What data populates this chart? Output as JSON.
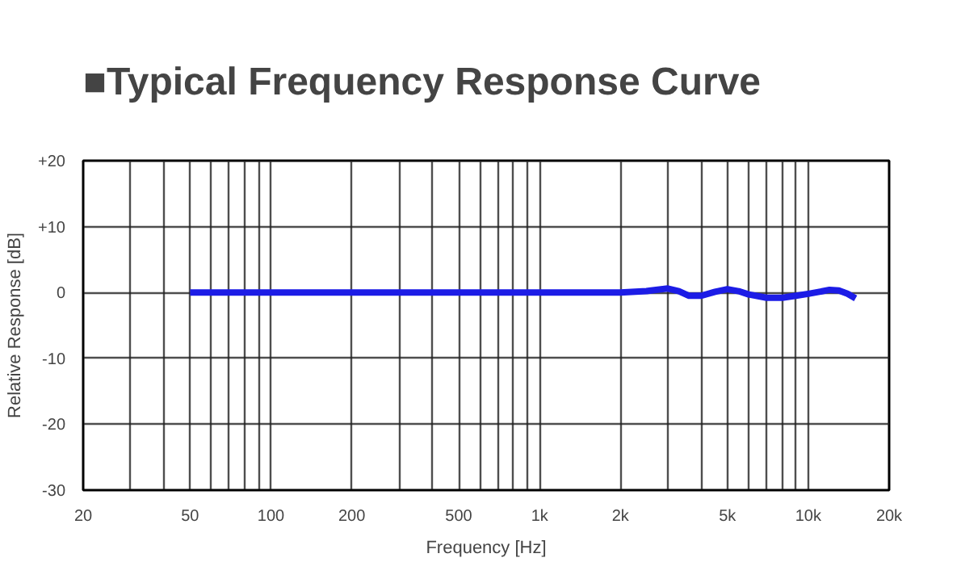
{
  "chart_data": {
    "type": "line",
    "title": "■Typical Frequency Response Curve",
    "xlabel": "Frequency [Hz]",
    "ylabel": "Relative Response [dB]",
    "log": "x",
    "grid": true,
    "xlim": [
      20,
      20000
    ],
    "ylim": [
      -30,
      20
    ],
    "xticks": [
      20,
      {
        "value": 30,
        "label": null
      },
      {
        "value": 40,
        "label": null
      },
      50,
      {
        "value": 60,
        "label": null
      },
      {
        "value": 70,
        "label": null
      },
      {
        "value": 80,
        "label": null
      },
      {
        "value": 90,
        "label": null
      },
      100,
      200,
      {
        "value": 300,
        "label": null
      },
      {
        "value": 400,
        "label": null
      },
      500,
      {
        "value": 600,
        "label": null
      },
      {
        "value": 700,
        "label": null
      },
      {
        "value": 800,
        "label": null
      },
      {
        "value": 900,
        "label": null
      },
      {
        "value": 1000,
        "label": "1k"
      },
      {
        "value": 2000,
        "label": "2k"
      },
      {
        "value": 3000,
        "label": null
      },
      {
        "value": 4000,
        "label": null
      },
      {
        "value": 5000,
        "label": "5k"
      },
      {
        "value": 6000,
        "label": null
      },
      {
        "value": 7000,
        "label": null
      },
      {
        "value": 8000,
        "label": null
      },
      {
        "value": 9000,
        "label": null
      },
      {
        "value": 10000,
        "label": "10k"
      },
      {
        "value": 20000,
        "label": "20k"
      }
    ],
    "yticks": [
      {
        "value": -30,
        "label": "-30"
      },
      -20,
      -10,
      0,
      {
        "value": 10,
        "label": "+10"
      },
      {
        "value": 20,
        "label": "+20"
      }
    ],
    "x": [
      50,
      100,
      1000,
      2000,
      2500,
      2600,
      3000,
      3300,
      3600,
      4000,
      4500,
      5000,
      5500,
      6000,
      7000,
      8000,
      9000,
      10000,
      11000,
      12000,
      13000,
      14000,
      15000
    ],
    "series": [
      {
        "color": "#1c1ce6",
        "values": [
          0,
          0,
          0,
          0,
          0.2,
          0.3,
          0.6,
          0.2,
          -0.5,
          -0.5,
          0.1,
          0.5,
          0.2,
          -0.3,
          -0.8,
          -0.8,
          -0.5,
          -0.2,
          0.1,
          0.4,
          0.3,
          -0.2,
          -0.9
        ]
      }
    ]
  }
}
